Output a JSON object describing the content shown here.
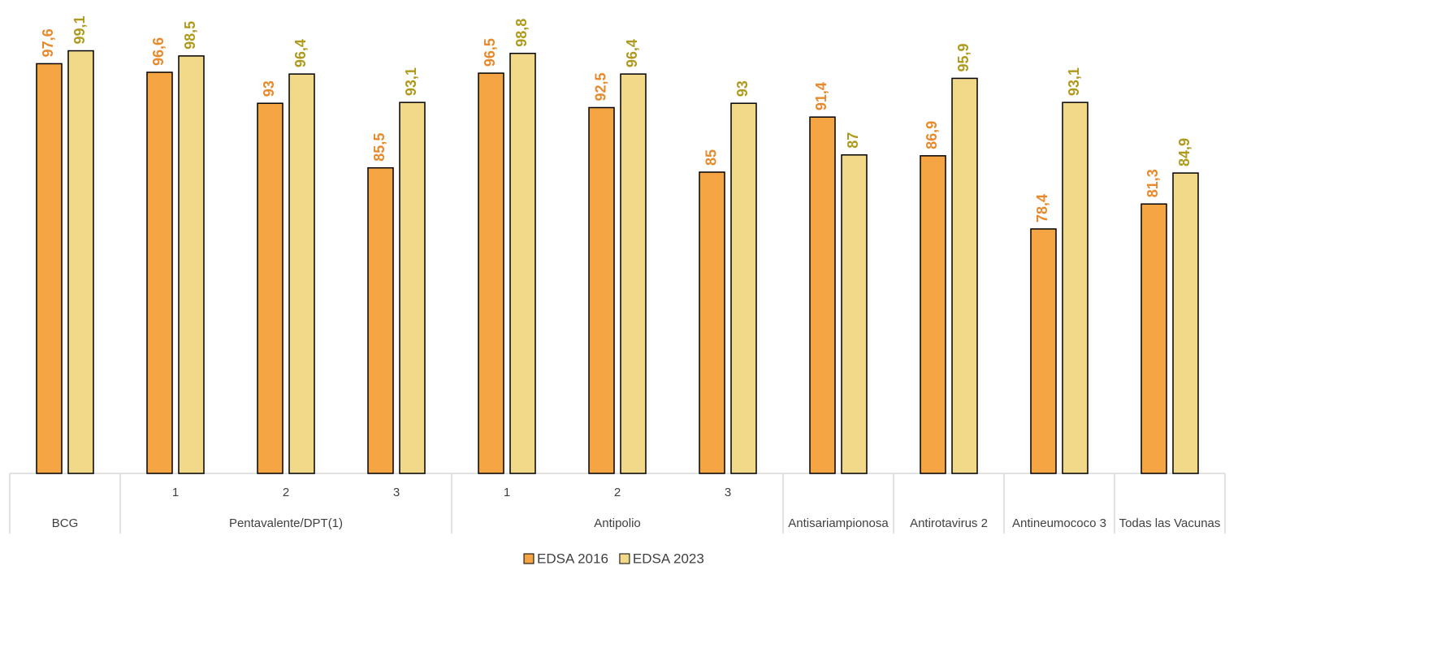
{
  "chart_data": {
    "type": "bar",
    "groups": [
      {
        "label": "BCG",
        "categories": [
          null
        ]
      },
      {
        "label": "Pentavalente/DPT(1)",
        "categories": [
          "1",
          "2",
          "3"
        ]
      },
      {
        "label": "Antipolio",
        "categories": [
          "1",
          "2",
          "3"
        ]
      },
      {
        "label": "Antisariampionosa",
        "categories": [
          null
        ]
      },
      {
        "label": "Antirotavirus 2",
        "categories": [
          null
        ]
      },
      {
        "label": "Antineumococo 3",
        "categories": [
          null
        ]
      },
      {
        "label": "Todas las Vacunas",
        "categories": [
          null
        ]
      }
    ],
    "series": [
      {
        "name": "EDSA 2016",
        "color": "#f4a443",
        "label_color": "#e8892b",
        "values": [
          97.6,
          96.6,
          93,
          85.5,
          96.5,
          92.5,
          85,
          91.4,
          86.9,
          78.4,
          81.3
        ],
        "value_labels": [
          "97,6",
          "96,6",
          "93",
          "85,5",
          "96,5",
          "92,5",
          "85",
          "91,4",
          "86,9",
          "78,4",
          "81,3"
        ]
      },
      {
        "name": "EDSA 2023",
        "color": "#f2d98a",
        "label_color": "#b09a1c",
        "values": [
          99.1,
          98.5,
          96.4,
          93.1,
          98.8,
          96.4,
          93,
          87,
          95.9,
          93.1,
          84.9
        ],
        "value_labels": [
          "99,1",
          "98,5",
          "96,4",
          "93,1",
          "98,8",
          "96,4",
          "93",
          "87",
          "95,9",
          "93,1",
          "84,9"
        ]
      }
    ],
    "ylim": [
      50,
      105
    ],
    "legend": "bottom"
  }
}
